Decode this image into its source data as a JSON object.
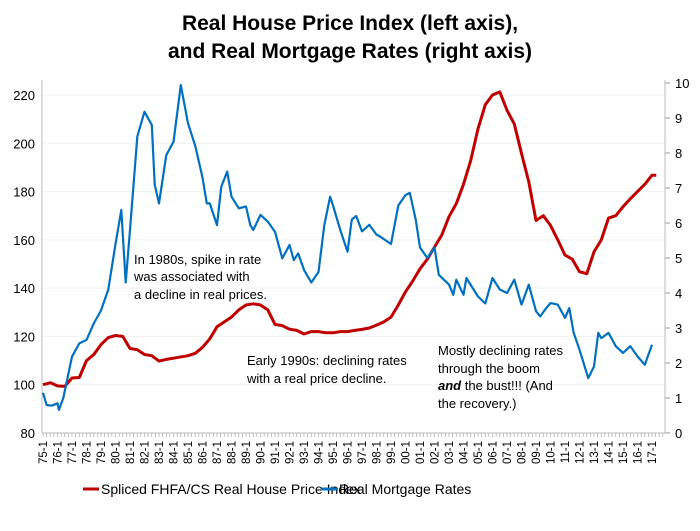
{
  "chart_data": {
    "type": "line",
    "title_lines": [
      "Real House Price Index (left axis),",
      "and Real Mortgage Rates (right axis)"
    ],
    "left_axis": {
      "range": [
        80,
        220
      ],
      "ticks": [
        80,
        100,
        120,
        140,
        160,
        180,
        200,
        220
      ]
    },
    "right_axis": {
      "range": [
        0,
        10
      ],
      "ticks": [
        0,
        1,
        2,
        3,
        4,
        5,
        6,
        7,
        8,
        9,
        10
      ]
    },
    "x_tick_labels": [
      "75-1",
      "76-1",
      "77-1",
      "78-1",
      "79-1",
      "80-1",
      "81-1",
      "82-1",
      "83-1",
      "84-1",
      "85-1",
      "86-1",
      "87-1",
      "88-1",
      "89-1",
      "90-1",
      "91-1",
      "92-1",
      "93-1",
      "94-1",
      "95-1",
      "96-1",
      "97-1",
      "98-1",
      "99-1",
      "00-1",
      "01-1",
      "02-1",
      "03-1",
      "04-1",
      "05-1",
      "06-1",
      "07-1",
      "08-1",
      "09-1",
      "10-1",
      "11-1",
      "12-1",
      "13-1",
      "14-1",
      "15-1",
      "16-1",
      "17-1"
    ],
    "grid": "horizontal",
    "legend_placement": "bottom",
    "series": [
      {
        "name": "Spliced FHFA/CS Real House Price Index",
        "axis": "left",
        "color": "#C00000",
        "x": [
          1975,
          1975.5,
          1976,
          1976.5,
          1977,
          1977.5,
          1978,
          1978.5,
          1979,
          1979.5,
          1980,
          1980.5,
          1981,
          1981.5,
          1982,
          1982.5,
          1983,
          1983.5,
          1984,
          1985,
          1985.5,
          1986,
          1986.5,
          1987,
          1987.5,
          1988,
          1988.5,
          1989,
          1989.5,
          1990,
          1990.5,
          1991,
          1991.5,
          1992,
          1992.5,
          1993,
          1993.5,
          1994,
          1994.5,
          1995,
          1995.5,
          1996,
          1996.5,
          1997,
          1997.5,
          1998,
          1998.5,
          1999,
          1999.5,
          2000,
          2000.5,
          2001,
          2001.5,
          2002,
          2002.5,
          2003,
          2003.5,
          2004,
          2004.5,
          2005,
          2005.5,
          2006,
          2006.5,
          2007,
          2007.5,
          2008,
          2008.5,
          2009,
          2009.5,
          2010,
          2010.5,
          2011,
          2011.5,
          2012,
          2012.5,
          2013,
          2013.5,
          2014,
          2014.5,
          2015,
          2015.5,
          2016,
          2016.5,
          2017,
          2017.3
        ],
        "values": [
          100,
          100.8,
          99.5,
          99.3,
          102.8,
          103,
          110,
          112.5,
          116.6,
          119.5,
          120.4,
          120,
          115,
          114.5,
          112.5,
          112,
          109.8,
          110.5,
          111,
          112,
          113,
          115.5,
          119,
          124,
          126,
          128,
          131,
          133,
          133.5,
          133,
          131,
          125,
          124.5,
          123,
          122.5,
          121,
          122,
          122,
          121.5,
          121.5,
          122,
          122,
          122.5,
          122.9,
          123.5,
          124.7,
          126,
          128,
          133,
          138.5,
          143,
          148,
          152,
          157,
          162,
          169.6,
          175,
          183,
          193,
          206,
          216,
          220,
          221.3,
          213.7,
          208,
          195.8,
          184,
          168,
          170,
          166,
          160,
          153.7,
          152,
          146.8,
          146,
          155,
          160,
          169,
          170,
          173.7,
          177,
          180,
          183,
          186.8,
          186.8
        ]
      },
      {
        "name": "Real Mortgage Rates",
        "axis": "right",
        "color": "#0070C0",
        "x": [
          1975,
          1975.25,
          1975.6,
          1976,
          1976.1,
          1976.4,
          1977,
          1977.5,
          1978,
          1978.5,
          1979,
          1979.5,
          1980,
          1980.4,
          1980.7,
          1981,
          1981.5,
          1982,
          1982.5,
          1982.7,
          1983,
          1983.5,
          1984,
          1984.5,
          1985,
          1985.5,
          1986,
          1986.3,
          1986.5,
          1987,
          1987.3,
          1987.7,
          1988,
          1988.5,
          1989,
          1989.3,
          1989.5,
          1990,
          1990.5,
          1991,
          1991.5,
          1992,
          1992.3,
          1992.6,
          1993,
          1993.5,
          1994,
          1994.4,
          1994.8,
          1995,
          1995.5,
          1996,
          1996.3,
          1996.6,
          1997,
          1997.5,
          1998,
          1998.3,
          1999,
          1999.5,
          2000,
          2000.3,
          2000.7,
          2001,
          2001.5,
          2002,
          2002.3,
          2003,
          2003.3,
          2003.5,
          2004,
          2004.2,
          2005,
          2005.5,
          2006,
          2006.5,
          2007,
          2007.5,
          2008,
          2008.5,
          2009,
          2009.3,
          2009.7,
          2010,
          2010.5,
          2011,
          2011.3,
          2011.6,
          2012,
          2012.6,
          2013,
          2013.3,
          2013.5,
          2014,
          2014.5,
          2015,
          2015.5,
          2016,
          2016.5,
          2017
        ],
        "values": [
          1.15,
          0.8,
          0.78,
          0.85,
          0.66,
          1.0,
          2.18,
          2.56,
          2.66,
          3.13,
          3.5,
          4.1,
          5.4,
          6.37,
          4.3,
          5.8,
          8.47,
          9.18,
          8.8,
          7.1,
          6.56,
          7.94,
          8.32,
          9.94,
          8.85,
          8.2,
          7.3,
          6.56,
          6.56,
          5.94,
          7.04,
          7.47,
          6.75,
          6.42,
          6.47,
          5.94,
          5.8,
          6.23,
          6.04,
          5.75,
          4.99,
          5.37,
          4.94,
          5.13,
          4.66,
          4.3,
          4.6,
          5.94,
          6.75,
          6.5,
          5.8,
          5.18,
          6.1,
          6.2,
          5.76,
          5.95,
          5.67,
          5.6,
          5.4,
          6.5,
          6.8,
          6.86,
          6.1,
          5.3,
          5.0,
          5.3,
          4.52,
          4.24,
          3.95,
          4.38,
          3.95,
          4.43,
          3.9,
          3.7,
          4.43,
          4.1,
          4.0,
          4.38,
          3.67,
          4.24,
          3.48,
          3.33,
          3.57,
          3.71,
          3.67,
          3.29,
          3.57,
          2.86,
          2.38,
          1.57,
          1.9,
          2.86,
          2.71,
          2.86,
          2.48,
          2.29,
          2.48,
          2.19,
          1.95,
          2.52
        ]
      }
    ],
    "annotations": [
      {
        "lines": [
          "In 1980s, spike in rate",
          "was associated with",
          "a decline in real prices."
        ]
      },
      {
        "lines": [
          "Early 1990s: declining rates",
          "with a real price decline."
        ]
      },
      {
        "lines": [
          "Mostly declining rates",
          "through the boom",
          "the bust!!!  (And",
          "the recovery.)"
        ],
        "emphasis": "and"
      }
    ]
  }
}
